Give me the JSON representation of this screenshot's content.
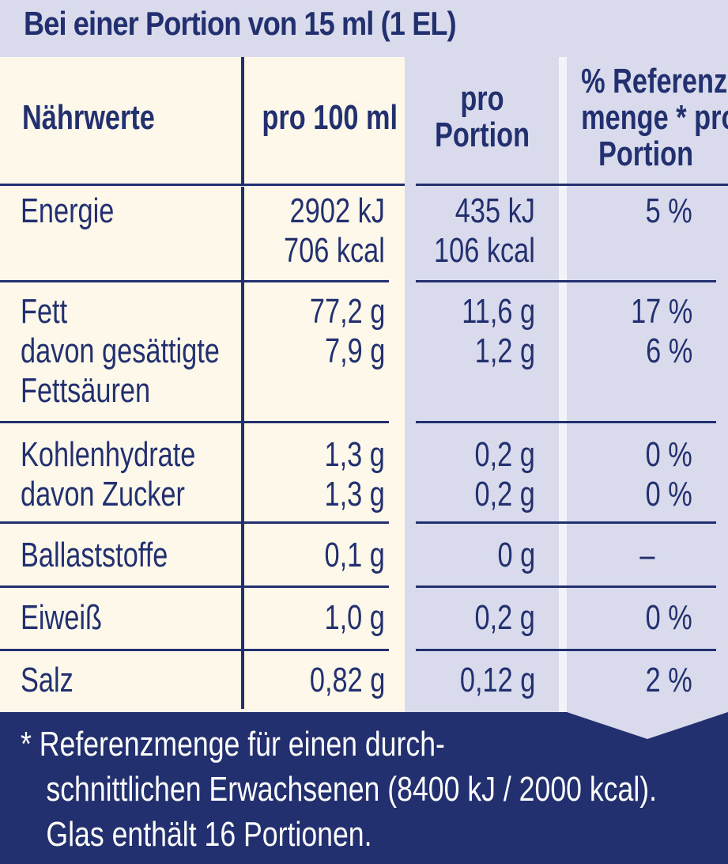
{
  "header": {
    "title": "Bei einer Portion von 15 ml (1 EL)"
  },
  "columns": {
    "nutrients": "Nährwerte",
    "per_100": "pro 100 ml",
    "per_portion_line1": "pro",
    "per_portion_line2": "Portion",
    "reference_line1": "% Referenz-",
    "reference_line2": "menge * pro",
    "reference_line3": "Portion"
  },
  "rows": [
    {
      "label_lines": [
        "Energie"
      ],
      "per_100_lines": [
        "2902 kJ",
        "706 kcal"
      ],
      "per_portion_lines": [
        "435 kJ",
        "106 kcal"
      ],
      "reference_lines": [
        "",
        "5 %"
      ]
    },
    {
      "label_lines": [
        "Fett",
        "davon gesättigte",
        "Fettsäuren"
      ],
      "per_100_lines": [
        "77,2 g",
        "7,9 g"
      ],
      "per_portion_lines": [
        "11,6 g",
        "1,2 g"
      ],
      "reference_lines": [
        "17 %",
        "6 %"
      ]
    },
    {
      "label_lines": [
        "Kohlenhydrate",
        "davon Zucker"
      ],
      "per_100_lines": [
        "1,3 g",
        "1,3 g"
      ],
      "per_portion_lines": [
        "0,2 g",
        "0,2 g"
      ],
      "reference_lines": [
        "0 %",
        "0 %"
      ]
    },
    {
      "label_lines": [
        "Ballaststoffe"
      ],
      "per_100_lines": [
        "0,1 g"
      ],
      "per_portion_lines": [
        "0 g"
      ],
      "reference_lines": [
        "–"
      ]
    },
    {
      "label_lines": [
        "Eiweiß"
      ],
      "per_100_lines": [
        "1,0 g"
      ],
      "per_portion_lines": [
        "0,2 g"
      ],
      "reference_lines": [
        "0 %"
      ]
    },
    {
      "label_lines": [
        "Salz"
      ],
      "per_100_lines": [
        "0,82 g"
      ],
      "per_portion_lines": [
        "0,12 g"
      ],
      "reference_lines": [
        "2 %"
      ]
    }
  ],
  "footer": {
    "line1": "* Referenzmenge für einen durch-",
    "line2": "schnittlichen Erwachsenen (8400 kJ / 2000 kcal).",
    "line3": "Glas enthält 16 Portionen."
  },
  "colors": {
    "navy": "#22306f",
    "cream": "#fdf8ea",
    "lavender": "#d9dbec",
    "white": "#ffffff"
  }
}
